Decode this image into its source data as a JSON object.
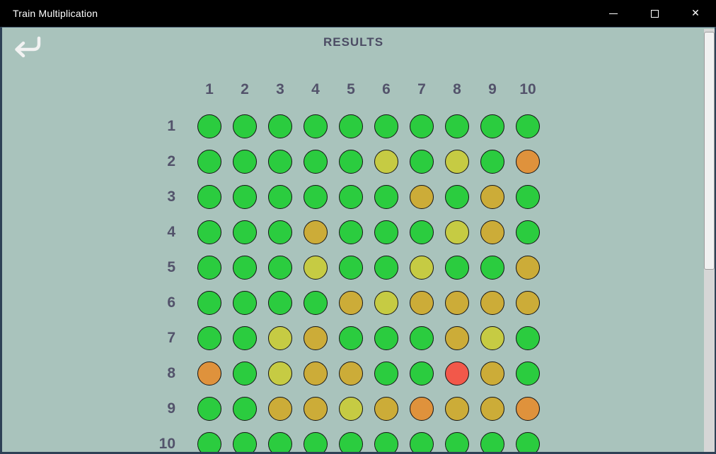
{
  "window": {
    "title": "Train Multiplication",
    "controls": {
      "minimize": "minimize",
      "maximize": "maximize",
      "close": "✕"
    }
  },
  "header": {
    "title": "RESULTS"
  },
  "grid": {
    "col_headers": [
      "1",
      "2",
      "3",
      "4",
      "5",
      "6",
      "7",
      "8",
      "9",
      "10"
    ],
    "row_headers": [
      "1",
      "2",
      "3",
      "4",
      "5",
      "6",
      "7",
      "8",
      "9",
      "10"
    ],
    "palette": {
      "g": "#2bcc3f",
      "y": "#c6cb43",
      "d": "#ccac38",
      "or": "#df923c",
      "r": "#f2584a"
    },
    "palette_names": {
      "g": "green",
      "y": "yellow-green",
      "d": "gold",
      "or": "orange",
      "r": "red"
    },
    "cells": [
      [
        "g",
        "g",
        "g",
        "g",
        "g",
        "g",
        "g",
        "g",
        "g",
        "g"
      ],
      [
        "g",
        "g",
        "g",
        "g",
        "g",
        "y",
        "g",
        "y",
        "g",
        "or"
      ],
      [
        "g",
        "g",
        "g",
        "g",
        "g",
        "g",
        "d",
        "g",
        "d",
        "g"
      ],
      [
        "g",
        "g",
        "g",
        "d",
        "g",
        "g",
        "g",
        "y",
        "d",
        "g"
      ],
      [
        "g",
        "g",
        "g",
        "y",
        "g",
        "g",
        "y",
        "g",
        "g",
        "d"
      ],
      [
        "g",
        "g",
        "g",
        "g",
        "d",
        "y",
        "d",
        "d",
        "d",
        "d"
      ],
      [
        "g",
        "g",
        "y",
        "d",
        "g",
        "g",
        "g",
        "d",
        "y",
        "g"
      ],
      [
        "or",
        "g",
        "y",
        "d",
        "d",
        "g",
        "g",
        "r",
        "d",
        "g"
      ],
      [
        "g",
        "g",
        "d",
        "d",
        "y",
        "d",
        "or",
        "d",
        "d",
        "or"
      ],
      [
        "g",
        "g",
        "g",
        "g",
        "g",
        "g",
        "g",
        "g",
        "g",
        "g"
      ]
    ]
  },
  "colors": {
    "titlebar_bg": "#000000",
    "titlebar_text": "#ffffff",
    "body_bg": "#a9c3bc",
    "window_border": "#2e4156",
    "heading_text": "#4c4c64",
    "grid_text": "#53536b",
    "scroll_track": "#d6d6d6",
    "scroll_thumb": "#f1f1f1"
  }
}
